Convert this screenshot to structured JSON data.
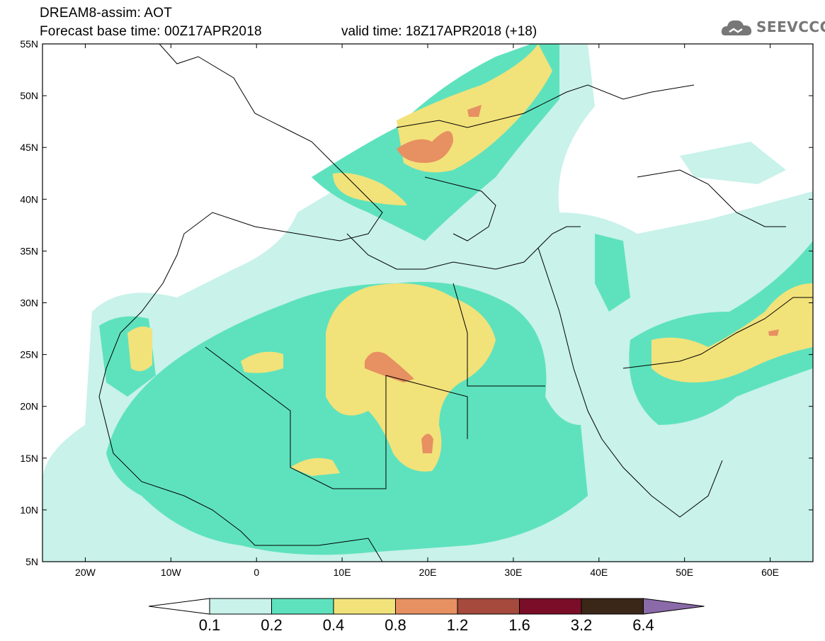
{
  "header": {
    "line1": "DREAM8-assim: AOT",
    "line2": "Forecast base time: 00Z17APR2018",
    "valid": "valid time: 18Z17APR2018 (+18)"
  },
  "logo": {
    "text": "SEEVCCC",
    "icon": "cloud-icon"
  },
  "map": {
    "lat_labels": [
      "55N",
      "50N",
      "45N",
      "40N",
      "35N",
      "30N",
      "25N",
      "20N",
      "15N",
      "10N",
      "5N"
    ],
    "lon_labels": [
      "20W",
      "10W",
      "0",
      "10E",
      "20E",
      "30E",
      "40E",
      "50E",
      "60E"
    ],
    "lat_range": [
      5,
      55
    ],
    "lon_range": [
      -25,
      65
    ]
  },
  "colorbar": {
    "labels": [
      "0.1",
      "0.2",
      "0.4",
      "0.8",
      "1.2",
      "1.6",
      "3.2",
      "6.4"
    ],
    "colors": [
      "#ffffff",
      "#c8f2ea",
      "#5ee2bd",
      "#f2e27a",
      "#e79062",
      "#a54a3c",
      "#7a0d28",
      "#3b2718",
      "#8a6aa8"
    ]
  }
}
